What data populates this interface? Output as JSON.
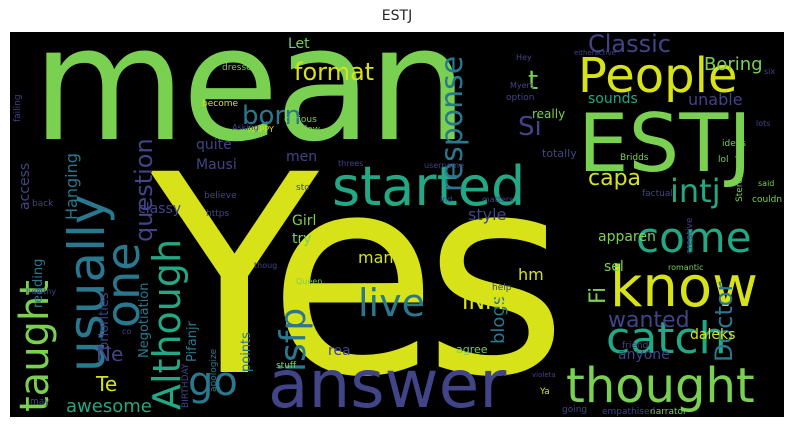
{
  "title": "ESTJ",
  "colors": {
    "background": "#000000",
    "yellow": "#d7e219",
    "green": "#7ad151",
    "teal": "#22a884",
    "blue": "#2a788e",
    "indigo": "#414487",
    "purple": "#440154"
  },
  "words": {
    "mean": "mean",
    "yes": "Yes",
    "answer": "answer",
    "people": "People",
    "estj": "ESTJ",
    "started": "started",
    "usually": "usually",
    "one": "one",
    "come": "come",
    "know": "know",
    "thought": "thought",
    "catch": "catch",
    "taught": "taught",
    "although": "Although",
    "go": "go",
    "live": "live",
    "isfp": "isfp",
    "intj": "intj",
    "format": "format",
    "classic": "Classic",
    "response": "response",
    "question": "question",
    "born": "born",
    "infp": "INFP",
    "wanted": "wanted",
    "doctor": "Doctor",
    "boring": "Boring",
    "t": "t",
    "si": "Si",
    "capa": "capa",
    "fi": "Fi",
    "ne": "Ne",
    "te": "Te",
    "awesome": "awesome",
    "daleks": "daleks",
    "anyone": "anyone",
    "manip": "manip",
    "blogs": "blogs",
    "hm": "hm",
    "sel": "sel",
    "style": "style",
    "apparen": "apparen",
    "sounds": "sounds",
    "unable": "unable",
    "let": "Let",
    "quite": "quite",
    "classy": "classy",
    "mausi": "Mausi",
    "men": "men",
    "girl": "Girl",
    "try": "try",
    "pifanjr": "Pifanjr",
    "points": "points",
    "rea": "rea",
    "negotiation": "Negotiation",
    "hanging": "Hanging",
    "access": "access",
    "reading": "reading",
    "priorities": "priorities",
    "really": "really",
    "totally": "totally",
    "agree": "agree",
    "stuff": "stuff",
    "dressed": "dressed",
    "curious": "curious",
    "fellow": "Fellow",
    "happy": "HAPPY",
    "asking": "Asking",
    "become": "become",
    "believe": "believe",
    "https": "https",
    "option": "option",
    "sto": "sto",
    "birthday": "BIRTHDAY",
    "apologize": "apologize",
    "narrator": "narrator",
    "going": "going",
    "empathised": "empathised",
    "friend": "friend",
    "healthy": "healthy",
    "back": "back",
    "failing": "failing",
    "stereotyping": "Stereotyping",
    "couldn": "couldn",
    "said": "said",
    "ideas": "ideas",
    "lots": "lots",
    "lol": "lol",
    "creative": "creative",
    "bridds": "Bridds",
    "factual": "factual",
    "romantic": "romantic",
    "help": "help",
    "queen": "Queen",
    "thoug": "thoug",
    "may": "may",
    "ya": "Ya",
    "hey": "Hey",
    "six": "six",
    "matters": "matters",
    "ind": "ind",
    "username": "username",
    "threes": "threes",
    "myers": "Myers",
    "co": "co",
    "eitheractive": "eitheractive",
    "violeta": "violeta"
  }
}
